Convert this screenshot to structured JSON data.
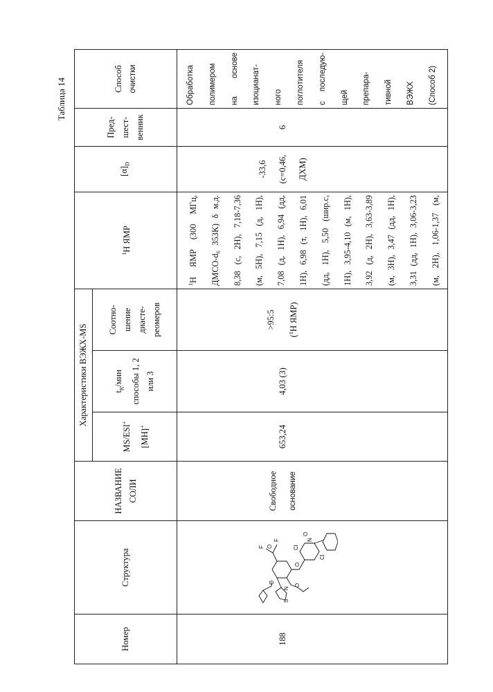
{
  "table_caption": "Таблица 14",
  "headers": {
    "number": "Номер",
    "structure": "Структура",
    "salt_name": [
      "НАЗВАНИЕ",
      "СОЛИ"
    ],
    "hplc_ms_group": "Характеристики ВЭЖХ-MS",
    "ms": [
      "MS/ESI+",
      "[MH]+"
    ],
    "tr": [
      "tR/мин",
      "способы 1, 2",
      "или 3"
    ],
    "ratio": [
      "Соотно-",
      "шение",
      "диасте-",
      "реомеров"
    ],
    "nmr": "1H ЯМР",
    "alpha": "[α]D",
    "precursor": [
      "Пред-",
      "шест-",
      "венник"
    ],
    "purification": [
      "Способ",
      "очистки"
    ]
  },
  "row": {
    "number": "188",
    "structure_atom_labels": [
      "S",
      "N",
      "O",
      "O",
      "O",
      "Cl",
      "N",
      "O",
      "Cl",
      "O",
      "F",
      "F"
    ],
    "salt_name": [
      "Свободное",
      "основание"
    ],
    "ms": "653,24",
    "tr": "4,03 (3)",
    "ratio": [
      ">95:5",
      "(1H ЯМР)"
    ],
    "nmr_lines": [
      "1H ЯМР (300 МГц,",
      "ДМСО-d6 353K) δ м.д.",
      "8,38 (с, 2H), 7,18-7,36",
      "(м, 5H), 7,15 (д, 1H),",
      "7,08 (д, 1H), 6,94 (дд,",
      "1H), 6,98 (т, 1H), 6,01",
      "(дд, 1H), 5,50 (шир.с,",
      "1H), 3,95-4,10 (м, 1H),",
      "3,92 (д, 2H), 3,63-3,89",
      "(м, 3H), 3,47 (дд, 1H),",
      "3,31 (дд, 1H), 3,06-3,23",
      "(м, 2H), 1,06-1,37 (м,"
    ],
    "alpha": [
      "-33,6",
      "(c=0,46,",
      "ДХМ)"
    ],
    "precursor": "6",
    "purification_lines": [
      "Обработка",
      "полимером",
      "на основе",
      "изоцианат-",
      "ного",
      "поглотителя",
      "с последую-",
      "щей",
      "препара-",
      "тивной",
      "ВЭЖХ",
      "(Способ 2)"
    ]
  }
}
